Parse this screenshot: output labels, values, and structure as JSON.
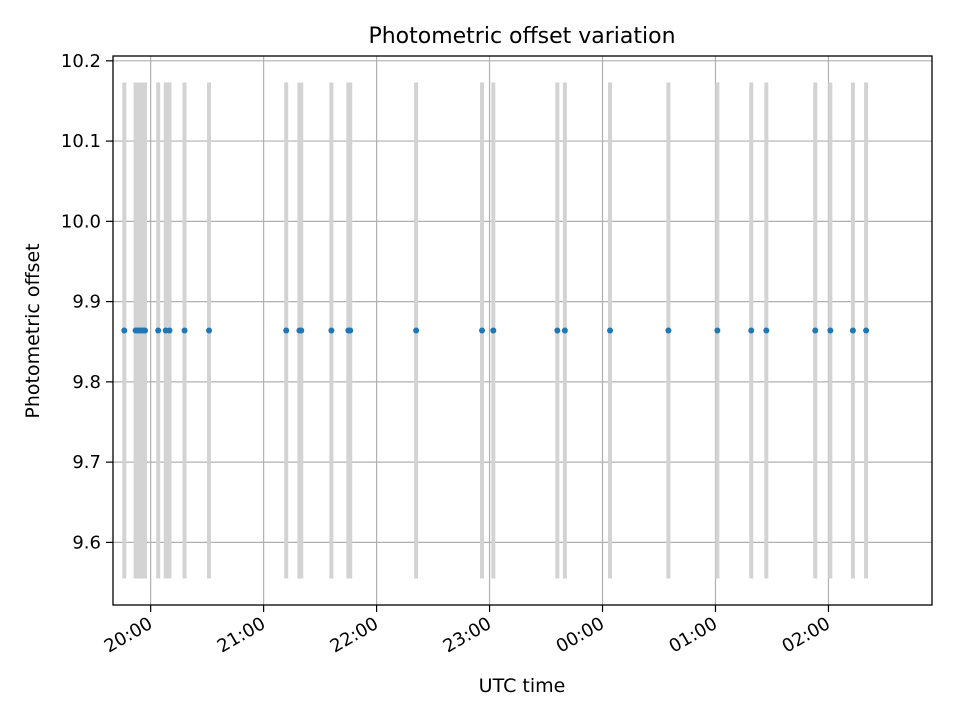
{
  "chart_data": {
    "type": "scatter",
    "title": "Photometric offset variation",
    "xlabel": "UTC time",
    "ylabel": "Photometric offset",
    "xlim": [
      "19:40",
      "02:55"
    ],
    "ylim": [
      9.522,
      10.206
    ],
    "x_ticks": [
      "20:00",
      "21:00",
      "22:00",
      "23:00",
      "00:00",
      "01:00",
      "02:00"
    ],
    "y_ticks": [
      "9.6",
      "9.7",
      "9.8",
      "9.9",
      "10.0",
      "10.1",
      "10.2"
    ],
    "grid": true,
    "error_bar_range": [
      9.555,
      10.173
    ],
    "series": [
      {
        "x": [
          "19:46",
          "19:52",
          "19:53",
          "19:54",
          "19:55",
          "19:56",
          "19:57",
          "20:04",
          "20:08",
          "20:10",
          "20:18",
          "20:31",
          "21:12",
          "21:19",
          "21:20",
          "21:36",
          "21:45",
          "21:46",
          "22:21",
          "22:56",
          "23:02",
          "23:36",
          "23:40",
          "24:04",
          "24:35",
          "25:01",
          "25:19",
          "25:27",
          "25:53",
          "26:01",
          "26:13",
          "26:20"
        ],
        "y": [
          9.864,
          9.864,
          9.864,
          9.864,
          9.864,
          9.864,
          9.864,
          9.864,
          9.864,
          9.864,
          9.864,
          9.864,
          9.864,
          9.864,
          9.864,
          9.864,
          9.864,
          9.864,
          9.864,
          9.864,
          9.864,
          9.864,
          9.864,
          9.864,
          9.864,
          9.864,
          9.864,
          9.864,
          9.864,
          9.864,
          9.864,
          9.864
        ],
        "color": "#1f77b4",
        "errorbar_color": "#d3d3d3"
      }
    ]
  }
}
